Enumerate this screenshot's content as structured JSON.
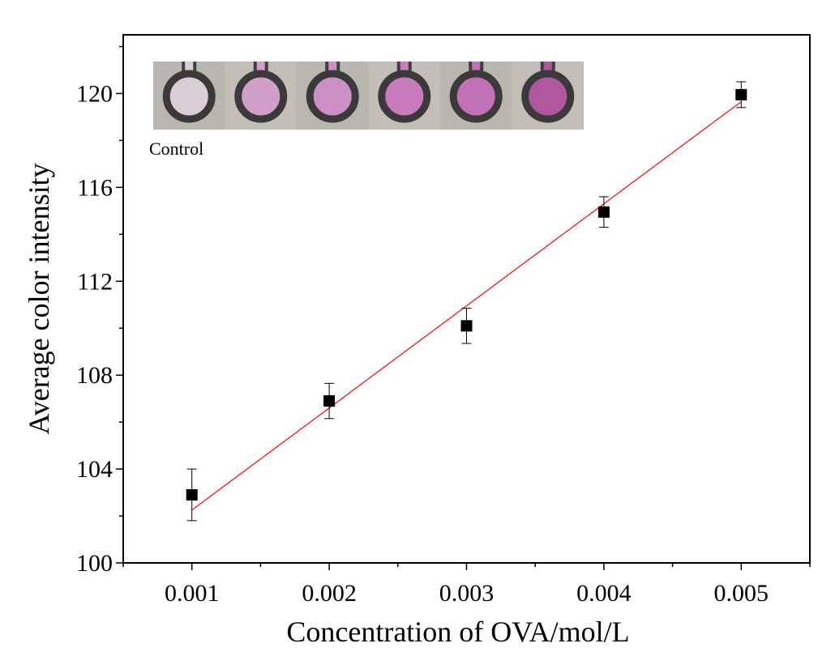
{
  "chart_data": {
    "type": "scatter",
    "title": "",
    "xlabel": "Concentration of OVA/mol/L",
    "ylabel": "Average color intensity",
    "xlim": [
      0.0005,
      0.0055
    ],
    "ylim": [
      100,
      122.5
    ],
    "x_ticks": [
      0.001,
      0.002,
      0.003,
      0.004,
      0.005
    ],
    "x_tick_labels": [
      "0.001",
      "0.002",
      "0.003",
      "0.004",
      "0.005"
    ],
    "y_ticks": [
      100,
      104,
      108,
      112,
      116,
      120
    ],
    "y_tick_labels": [
      "100",
      "104",
      "108",
      "112",
      "116",
      "120"
    ],
    "grid": false,
    "series": [
      {
        "x": [
          0.001,
          0.002,
          0.003,
          0.004,
          0.005
        ],
        "y": [
          102.9,
          106.9,
          110.1,
          114.95,
          119.95
        ],
        "error": [
          1.1,
          0.75,
          0.75,
          0.65,
          0.55
        ],
        "marker": "square",
        "color": "#000000"
      }
    ],
    "fit_line": {
      "x": [
        0.001,
        0.005
      ],
      "y": [
        102.25,
        119.65
      ],
      "color": "#ff0000"
    },
    "inset": {
      "label": "Control",
      "swatches": [
        "#d9ced6",
        "#d29fc8",
        "#cd8fc6",
        "#c87bbd",
        "#c271b8",
        "#b0579f"
      ]
    }
  }
}
